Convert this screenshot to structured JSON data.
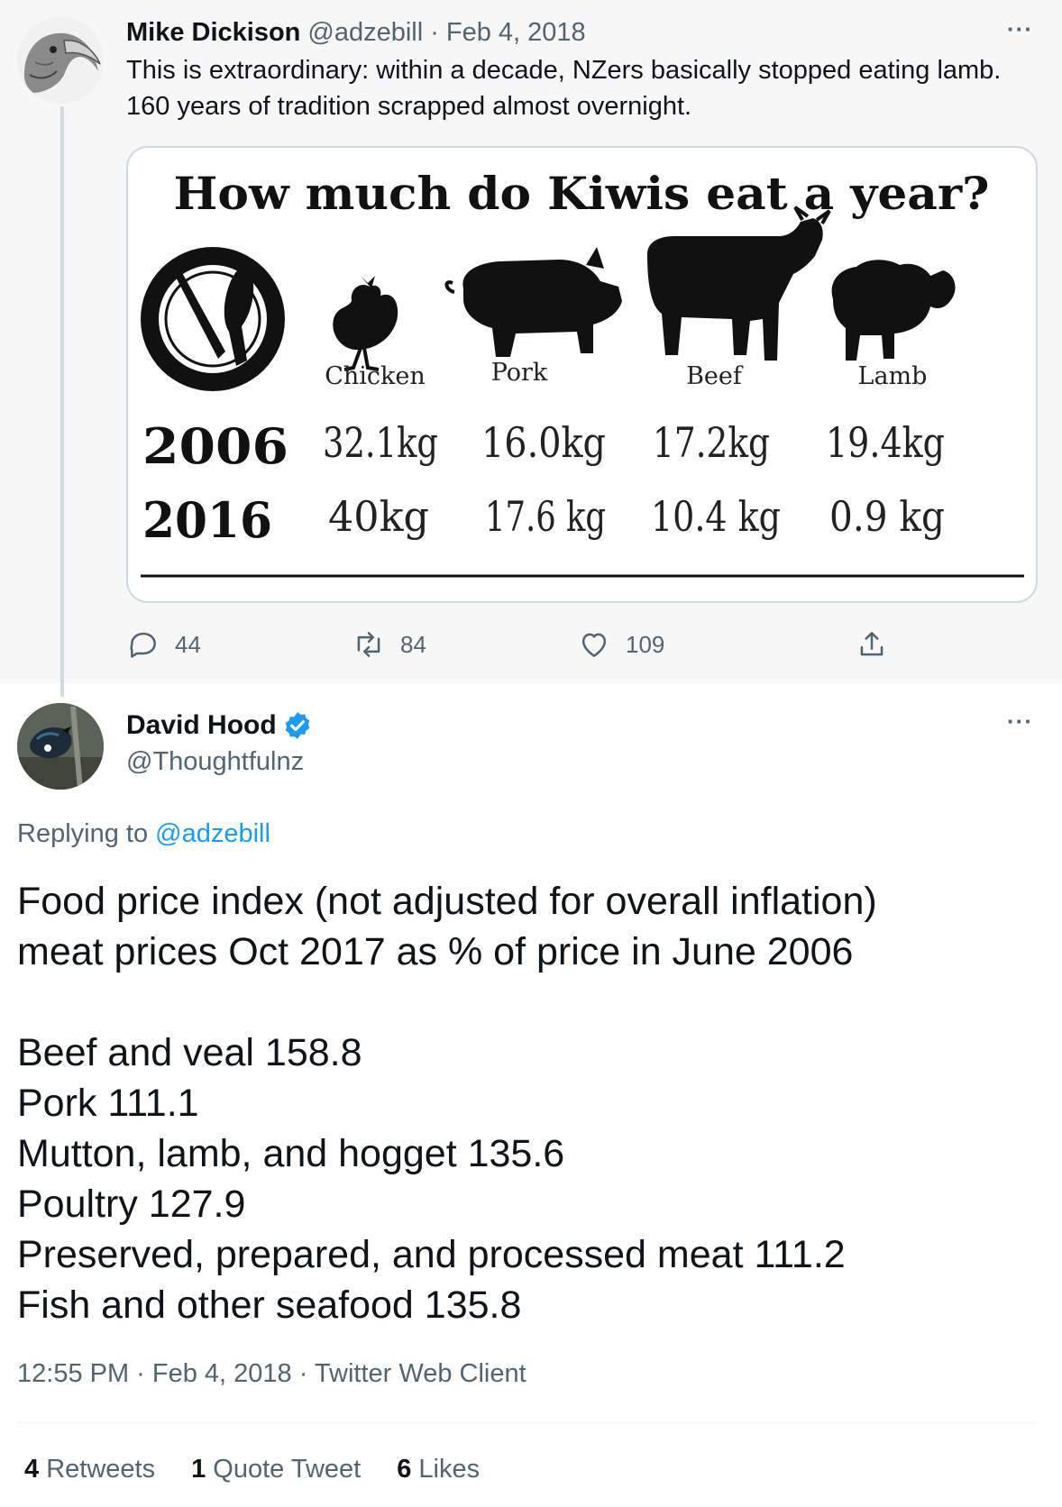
{
  "parent": {
    "name": "Mike Dickison",
    "handle": "@adzebill",
    "separator": "·",
    "date": "Feb 4, 2018",
    "text_line1": "This is extraordinary: within a decade, NZers basically stopped eating lamb.",
    "text_line2": "160 years of tradition scrapped almost overnight.",
    "more": "···",
    "media": {
      "title": "How much do Kiwis eat a year?",
      "categories": [
        "Chicken",
        "Pork",
        "Beef",
        "Lamb"
      ],
      "rows": [
        {
          "year": "2006",
          "values": [
            "32.1kg",
            "16.0kg",
            "17.2kg",
            "19.4kg"
          ]
        },
        {
          "year": "2016",
          "values": [
            "40kg",
            "17.6 kg",
            "10.4 kg",
            "0.9 kg"
          ]
        }
      ]
    },
    "actions": {
      "reply_count": "44",
      "retweet_count": "84",
      "like_count": "109"
    }
  },
  "reply": {
    "name": "David Hood",
    "handle": "@Thoughtfulnz",
    "more": "···",
    "replying_prefix": "Replying to",
    "replying_handle": "@adzebill",
    "lines": [
      "Food price index (not adjusted for overall inflation)",
      "meat prices Oct 2017 as % of price in June 2006",
      "",
      "Beef and veal 158.8",
      "Pork 111.1",
      "Mutton, lamb, and hogget 135.6",
      "Poultry 127.9",
      "Preserved, prepared, and processed meat 111.2",
      "Fish and other seafood 135.8"
    ],
    "meta": "12:55 PM · Feb 4, 2018 · Twitter Web Client",
    "stats": {
      "retweets_count": "4",
      "retweets_label": "Retweets",
      "quotes_count": "1",
      "quotes_label": "Quote Tweet",
      "likes_count": "6",
      "likes_label": "Likes"
    }
  },
  "icons": {
    "reply": "comment-bubble-icon",
    "retweet": "retweet-arrows-icon",
    "like": "heart-icon",
    "share": "share-upload-icon",
    "verified": "verified-badge-icon"
  },
  "colors": {
    "accent": "#1d9bf0",
    "secondary_text": "#536471",
    "parent_bg": "#f7f7f7"
  }
}
